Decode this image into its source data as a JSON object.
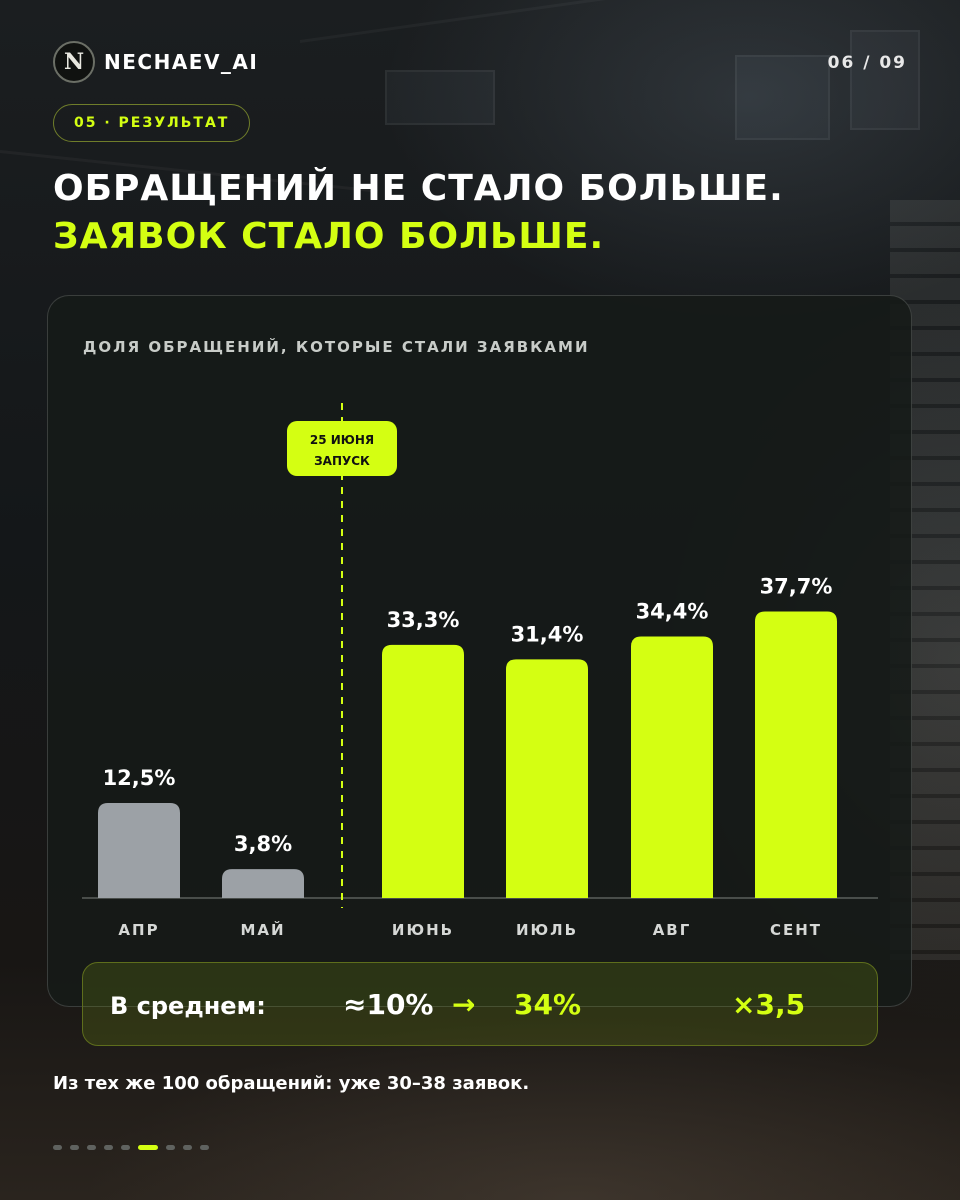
{
  "brand": {
    "name": "NECHAEV_AI",
    "logo_letter": "N"
  },
  "pager": "06 / 09",
  "section_label": "05 · РЕЗУЛЬТАТ",
  "headline": {
    "line1": "ОБРАЩЕНИЙ НЕ СТАЛО БОЛЬШЕ.",
    "line2": "ЗАЯВОК СТАЛО БОЛЬШЕ."
  },
  "colors": {
    "accent": "#d4ff12",
    "before": "#9ca1a6",
    "text": "#ffffff"
  },
  "chart_data": {
    "type": "bar",
    "title": "ДОЛЯ ОБРАЩЕНИЙ, КОТОРЫЕ СТАЛИ ЗАЯВКАМИ",
    "categories": [
      "АПР",
      "МАЙ",
      "ИЮНЬ",
      "ИЮЛЬ",
      "АВГ",
      "СЕНТ"
    ],
    "values": [
      12.5,
      3.8,
      33.3,
      31.4,
      34.4,
      37.7
    ],
    "value_labels": [
      "12,5%",
      "3,8%",
      "33,3%",
      "31,4%",
      "34,4%",
      "37,7%"
    ],
    "group": [
      "before",
      "before",
      "after",
      "after",
      "after",
      "after"
    ],
    "xlabel": "",
    "ylabel": "",
    "grid": false,
    "marker": {
      "line1": "25 ИЮНЯ",
      "line2": "ЗАПУСК",
      "between": [
        "МАЙ",
        "ИЮНЬ"
      ]
    }
  },
  "summary": {
    "label": "В среднем:",
    "before": "≈10%",
    "arrow": "→",
    "after": "34%",
    "multiplier": "×3,5"
  },
  "footnote": "Из тех же 100 обращений: уже 30–38 заявок.",
  "pagination": {
    "total": 9,
    "active": 6
  }
}
